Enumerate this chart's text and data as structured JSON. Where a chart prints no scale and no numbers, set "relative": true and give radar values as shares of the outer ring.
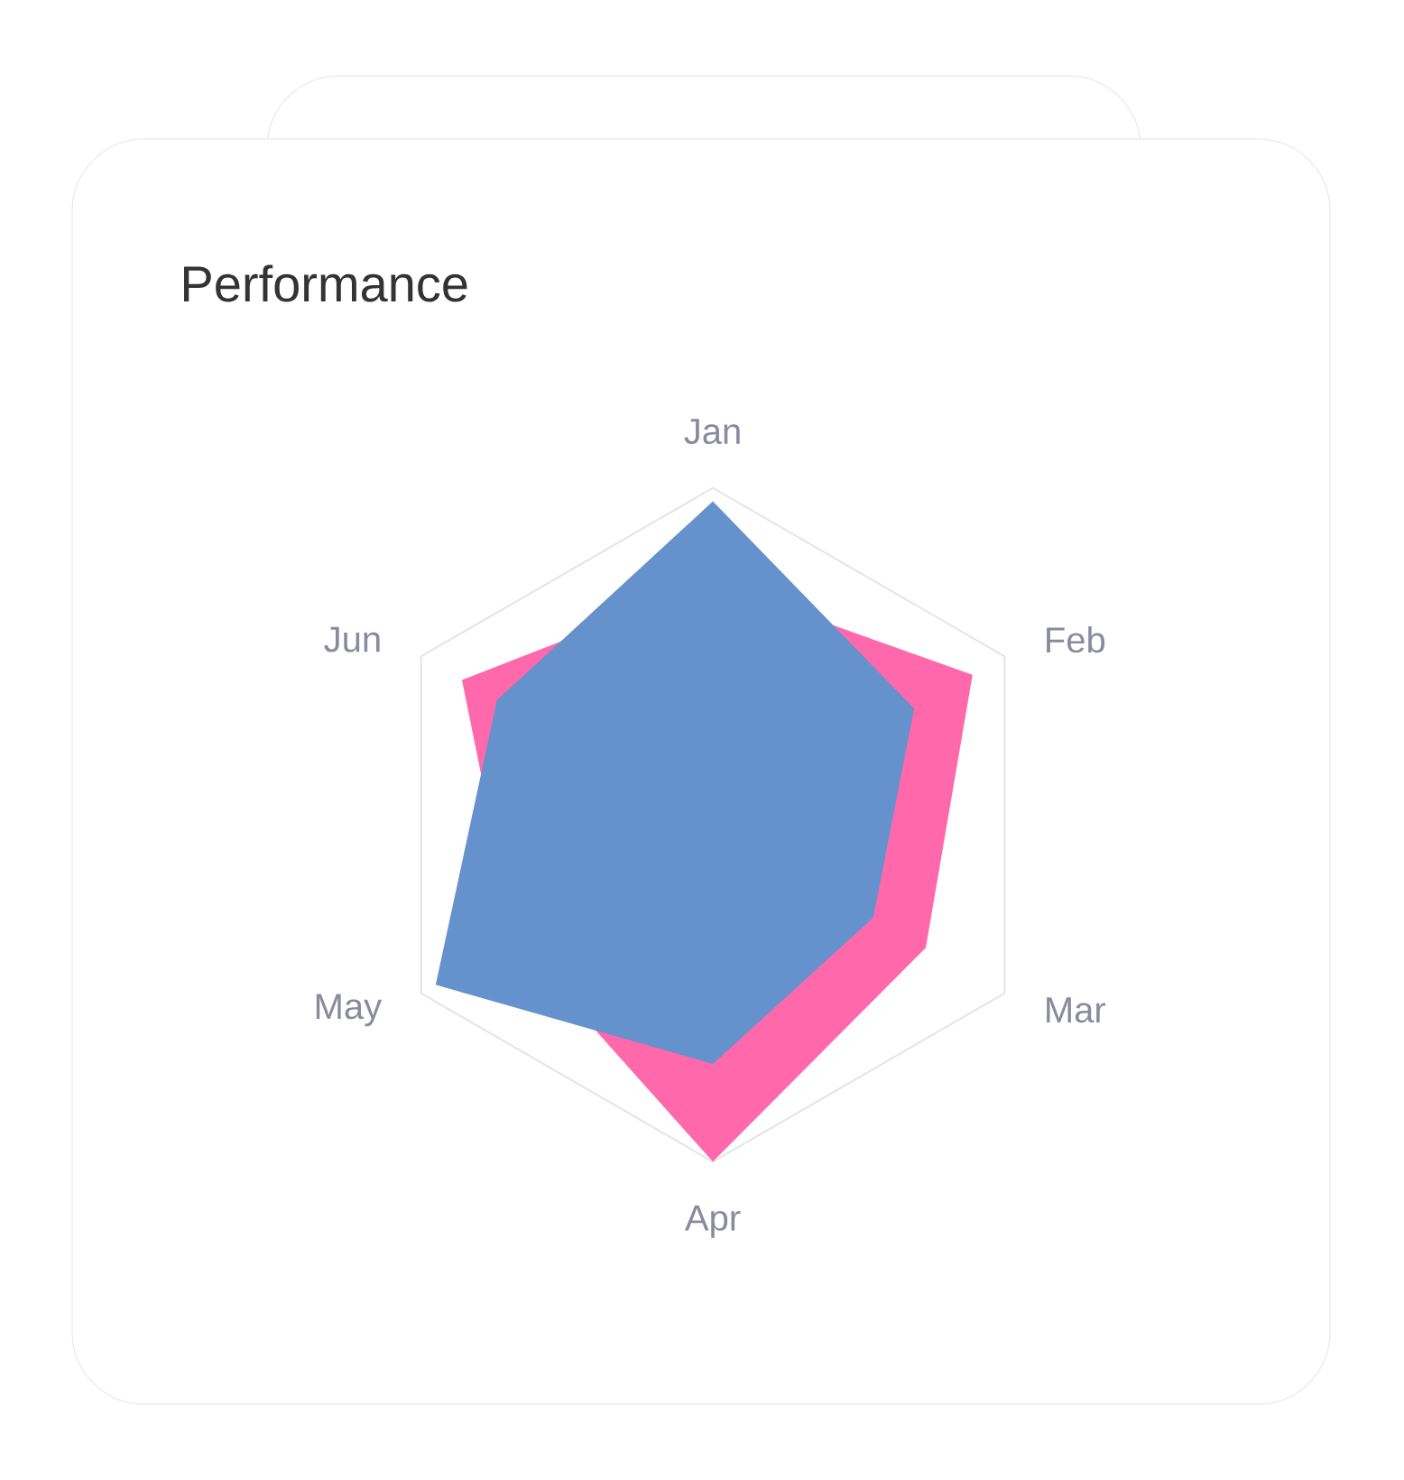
{
  "chart_data": {
    "type": "radar",
    "title": "Performance",
    "categories": [
      "Jan",
      "Feb",
      "Mar",
      "Apr",
      "May",
      "Jun"
    ],
    "relative": true,
    "series": [
      {
        "color": "#ff69ab",
        "values": [
          0.72,
          0.89,
          0.73,
          1.0,
          0.68,
          0.86
        ]
      },
      {
        "color": "#6591cc",
        "values": [
          0.96,
          0.69,
          0.55,
          0.71,
          0.95,
          0.74
        ]
      }
    ]
  }
}
